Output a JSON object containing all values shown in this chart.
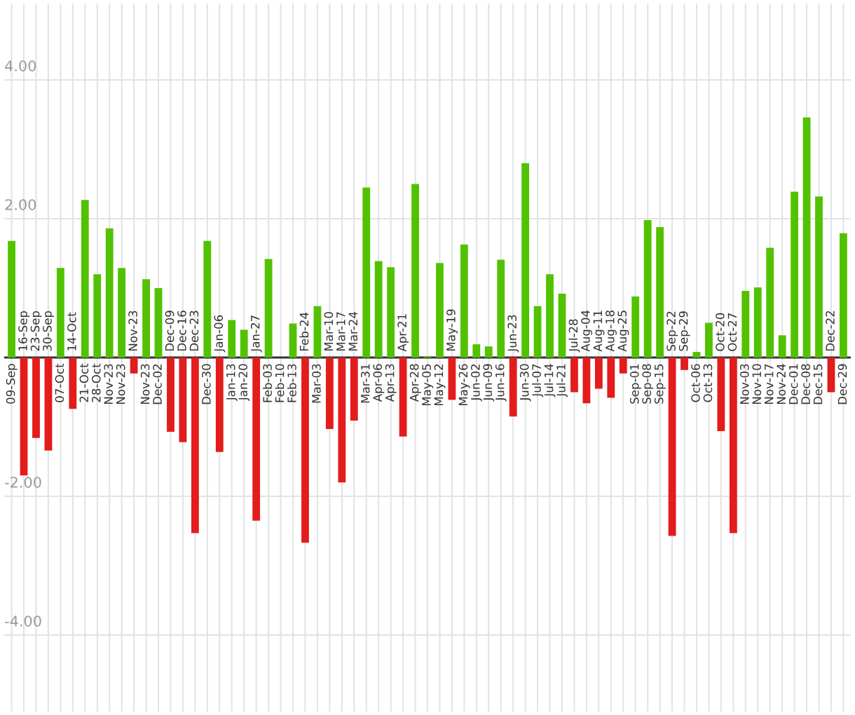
{
  "chart_data": {
    "type": "bar",
    "categories": [
      "09-Sep",
      "16-Sep",
      "23-Sep",
      "30-Sep",
      "07-Oct",
      "14-Oct",
      "21-Oct",
      "28-Oct",
      "Nov-23",
      "Nov-23",
      "Nov-23",
      "Nov-23",
      "Dec-02",
      "Dec-09",
      "Dec-16",
      "Dec-23",
      "Dec-30",
      "Jan-06",
      "Jan-13",
      "Jan-20",
      "Jan-27",
      "Feb-03",
      "Feb-10",
      "Feb-13",
      "Feb-24",
      "Mar-03",
      "Mar-10",
      "Mar-17",
      "Mar-24",
      "Mar-31",
      "Apr-06",
      "Apr-13",
      "Apr-21",
      "Apr-28",
      "May-05",
      "May-12",
      "May-19",
      "May-26",
      "Jun-02",
      "Jun-09",
      "Jun-16",
      "Jun-23",
      "Jun-30",
      "Jul-07",
      "Jul-14",
      "Jul-21",
      "Jul-28",
      "Aug-04",
      "Aug-11",
      "Aug-18",
      "Aug-25",
      "Sep-01",
      "Sep-08",
      "Sep-15",
      "Sep-22",
      "Sep-29",
      "Oct-06",
      "Oct-13",
      "Oct-20",
      "Oct-27",
      "Nov-03",
      "Nov-10",
      "Nov-17",
      "Nov-24",
      "Dec-01",
      "Dec-08",
      "Dec-15",
      "Dec-22",
      "Dec-29"
    ],
    "values": [
      1.68,
      -1.7,
      -1.16,
      -1.34,
      1.29,
      -0.74,
      2.27,
      1.2,
      1.86,
      1.29,
      -0.23,
      1.13,
      1.0,
      -1.07,
      -1.22,
      -2.53,
      1.68,
      -1.36,
      0.54,
      0.4,
      -2.35,
      1.42,
      0,
      0.49,
      -2.67,
      0.74,
      -1.03,
      -1.8,
      -0.91,
      2.45,
      1.39,
      1.3,
      -1.14,
      2.5,
      0.02,
      1.36,
      -0.61,
      1.63,
      0.19,
      0.16,
      1.41,
      -0.85,
      2.8,
      0.74,
      1.2,
      0.92,
      -0.5,
      -0.66,
      -0.45,
      -0.58,
      -0.23,
      0.88,
      1.98,
      1.88,
      -2.57,
      -0.18,
      0.08,
      0.5,
      -1.06,
      -2.53,
      0.96,
      1.01,
      1.58,
      0.32,
      2.39,
      3.46,
      2.32,
      -0.5,
      1.79
    ],
    "colors": [
      "#52c200",
      "#e31c1c",
      "#e31c1c",
      "#e31c1c",
      "#52c200",
      "#e31c1c",
      "#52c200",
      "#52c200",
      "#52c200",
      "#52c200",
      "#e31c1c",
      "#52c200",
      "#52c200",
      "#e31c1c",
      "#e31c1c",
      "#e31c1c",
      "#52c200",
      "#e31c1c",
      "#52c200",
      "#52c200",
      "#e31c1c",
      "#52c200",
      "#52c200",
      "#52c200",
      "#e31c1c",
      "#52c200",
      "#e31c1c",
      "#e31c1c",
      "#e31c1c",
      "#52c200",
      "#52c200",
      "#52c200",
      "#e31c1c",
      "#52c200",
      "#52c200",
      "#52c200",
      "#e31c1c",
      "#52c200",
      "#52c200",
      "#52c200",
      "#52c200",
      "#e31c1c",
      "#52c200",
      "#52c200",
      "#52c200",
      "#52c200",
      "#e31c1c",
      "#e31c1c",
      "#e31c1c",
      "#e31c1c",
      "#e31c1c",
      "#52c200",
      "#52c200",
      "#52c200",
      "#e31c1c",
      "#e31c1c",
      "#52c200",
      "#52c200",
      "#e31c1c",
      "#e31c1c",
      "#52c200",
      "#52c200",
      "#52c200",
      "#52c200",
      "#52c200",
      "#52c200",
      "#52c200",
      "#e31c1c",
      "#52c200"
    ],
    "ylim": [
      -5.1,
      5.1
    ],
    "yticks": [
      {
        "value": -4,
        "label": "-4.00"
      },
      {
        "value": -2,
        "label": "-2.00"
      },
      {
        "value": 0,
        "label": null
      },
      {
        "value": 2,
        "label": "2.00"
      },
      {
        "value": 4,
        "label": "4.00"
      }
    ],
    "grid": true
  }
}
